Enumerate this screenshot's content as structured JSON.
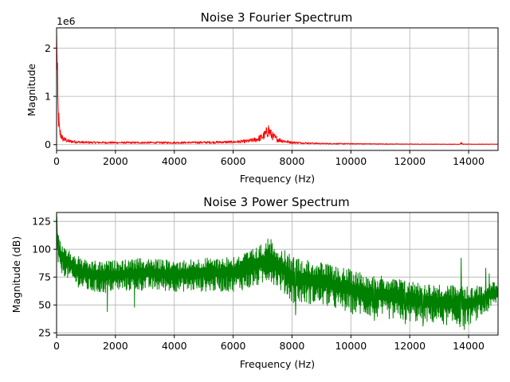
{
  "chart_data": [
    {
      "type": "line",
      "title": "Noise  3 Fourier Spectrum",
      "xlabel": "Frequency (Hz)",
      "ylabel": "Magnitude",
      "y_offset_label": "1e6",
      "xlim": [
        0,
        15000
      ],
      "ylim": [
        -0.12,
        2.42
      ],
      "grid": true,
      "x_ticks": [
        0,
        2000,
        4000,
        6000,
        8000,
        10000,
        12000,
        14000
      ],
      "x_tick_labels": [
        "0",
        "2000",
        "4000",
        "6000",
        "8000",
        "10000",
        "12000",
        "14000"
      ],
      "y_ticks": [
        0,
        1,
        2
      ],
      "y_tick_labels": [
        "0",
        "1",
        "2"
      ],
      "series": [
        {
          "color": "#ff0000",
          "envelope_x": [
            0,
            20,
            50,
            100,
            200,
            400,
            700,
            1000,
            2000,
            3000,
            4000,
            5000,
            6000,
            6500,
            6800,
            7000,
            7100,
            7200,
            7300,
            7500,
            7800,
            8000,
            8500,
            9000,
            10000,
            11000,
            12000,
            13000,
            13700,
            13750,
            13800,
            14000,
            15000
          ],
          "envelope_y": [
            2.35,
            1.6,
            0.75,
            0.3,
            0.14,
            0.08,
            0.06,
            0.05,
            0.045,
            0.045,
            0.045,
            0.05,
            0.06,
            0.08,
            0.12,
            0.18,
            0.24,
            0.34,
            0.22,
            0.12,
            0.07,
            0.05,
            0.035,
            0.025,
            0.02,
            0.015,
            0.012,
            0.01,
            0.01,
            0.04,
            0.01,
            0.01,
            0.01
          ]
        }
      ]
    },
    {
      "type": "line",
      "title": "Noise  3 Power Spectrum",
      "xlabel": "Frequency (Hz)",
      "ylabel": "Magnitude (dB)",
      "xlim": [
        0,
        15000
      ],
      "ylim": [
        23,
        133
      ],
      "grid": true,
      "x_ticks": [
        0,
        2000,
        4000,
        6000,
        8000,
        10000,
        12000,
        14000
      ],
      "x_tick_labels": [
        "0",
        "2000",
        "4000",
        "6000",
        "8000",
        "10000",
        "12000",
        "14000"
      ],
      "y_ticks": [
        25,
        50,
        75,
        100,
        125
      ],
      "y_tick_labels": [
        "25",
        "50",
        "75",
        "100",
        "125"
      ],
      "series": [
        {
          "color": "#008000",
          "envelope_x": [
            0,
            30,
            100,
            300,
            600,
            1000,
            1500,
            2000,
            3000,
            4000,
            5000,
            6000,
            6500,
            7000,
            7200,
            7400,
            7800,
            8000,
            9000,
            10000,
            11000,
            12000,
            13000,
            13700,
            14000,
            14500,
            15000
          ],
          "upper_y": [
            132,
            120,
            108,
            102,
            96,
            90,
            89,
            90,
            92,
            90,
            92,
            94,
            98,
            105,
            111,
            106,
            98,
            94,
            88,
            82,
            76,
            72,
            68,
            68,
            66,
            68,
            72
          ],
          "lower_y": [
            95,
            88,
            80,
            75,
            68,
            62,
            60,
            62,
            63,
            62,
            62,
            62,
            64,
            68,
            72,
            68,
            58,
            52,
            50,
            42,
            38,
            35,
            33,
            30,
            32,
            40,
            52
          ],
          "spikes": [
            {
              "x": 1720,
              "y": 44
            },
            {
              "x": 2650,
              "y": 48
            },
            {
              "x": 8120,
              "y": 41
            },
            {
              "x": 10800,
              "y": 36
            },
            {
              "x": 11850,
              "y": 33
            },
            {
              "x": 12450,
              "y": 31
            },
            {
              "x": 13750,
              "y": 92
            },
            {
              "x": 13850,
              "y": 28
            },
            {
              "x": 14580,
              "y": 83
            },
            {
              "x": 14700,
              "y": 78
            }
          ]
        }
      ]
    }
  ]
}
